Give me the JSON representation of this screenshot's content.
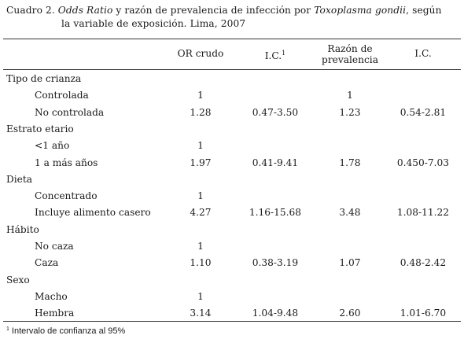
{
  "caption": {
    "prefix": "Cuadro 2.",
    "italic_1": "Odds Ratio",
    "text_1": " y razón de prevalencia de infección por ",
    "italic_2": "Toxoplasma gondii",
    "text_2": ", según",
    "line_2": "la variable de exposición. Lima, 2007"
  },
  "headers": {
    "or_crudo": "OR crudo",
    "ic": "I.C.",
    "ic_note": "1",
    "razon_line1": "Razón de",
    "razon_line2": "prevalencia",
    "ic2": "I.C."
  },
  "rows": [
    {
      "label": "Tipo de crianza",
      "group": true,
      "or": "",
      "ic": "",
      "rp": "",
      "ic2": ""
    },
    {
      "label": "Controlada",
      "group": false,
      "or": "1",
      "ic": "",
      "rp": "1",
      "ic2": ""
    },
    {
      "label": "No controlada",
      "group": false,
      "or": "1.28",
      "ic": "0.47-3.50",
      "rp": "1.23",
      "ic2": "0.54-2.81"
    },
    {
      "label": "Estrato etario",
      "group": true,
      "or": "",
      "ic": "",
      "rp": "",
      "ic2": ""
    },
    {
      "label": "<1 año",
      "group": false,
      "or": "1",
      "ic": "",
      "rp": "",
      "ic2": ""
    },
    {
      "label": "1 a más años",
      "group": false,
      "or": "1.97",
      "ic": "0.41-9.41",
      "rp": "1.78",
      "ic2": "0.450-7.03"
    },
    {
      "label": "Dieta",
      "group": true,
      "or": "",
      "ic": "",
      "rp": "",
      "ic2": ""
    },
    {
      "label": "Concentrado",
      "group": false,
      "or": "1",
      "ic": "",
      "rp": "",
      "ic2": ""
    },
    {
      "label": "Incluye alimento casero",
      "group": false,
      "or": "4.27",
      "ic": "1.16-15.68",
      "rp": "3.48",
      "ic2": "1.08-11.22"
    },
    {
      "label": "Hábito",
      "group": true,
      "or": "",
      "ic": "",
      "rp": "",
      "ic2": ""
    },
    {
      "label": "No caza",
      "group": false,
      "or": "1",
      "ic": "",
      "rp": "",
      "ic2": ""
    },
    {
      "label": "Caza",
      "group": false,
      "or": "1.10",
      "ic": "0.38-3.19",
      "rp": "1.07",
      "ic2": "0.48-2.42"
    },
    {
      "label": "Sexo",
      "group": true,
      "or": "",
      "ic": "",
      "rp": "",
      "ic2": ""
    },
    {
      "label": "Macho",
      "group": false,
      "or": "1",
      "ic": "",
      "rp": "",
      "ic2": ""
    },
    {
      "label": "Hembra",
      "group": false,
      "or": "3.14",
      "ic": "1.04-9.48",
      "rp": "2.60",
      "ic2": "1.01-6.70"
    }
  ],
  "footnote": {
    "marker": "1",
    "text": "Intervalo de confianza al 95%"
  }
}
